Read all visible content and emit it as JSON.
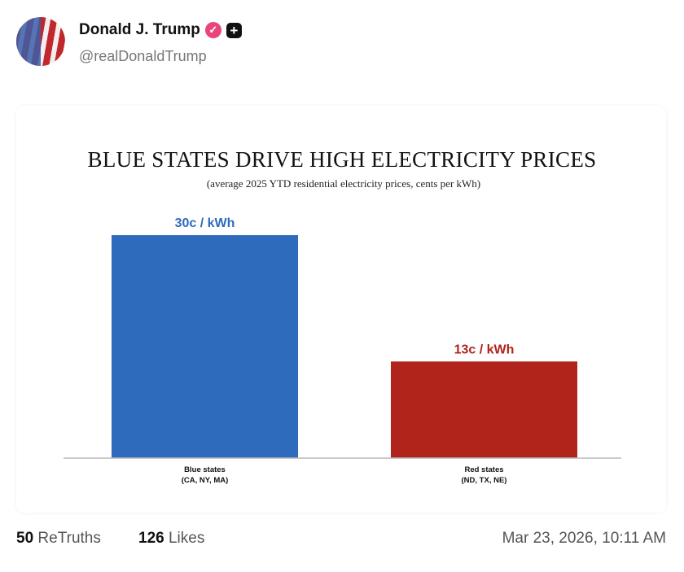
{
  "post": {
    "author_name": "Donald J. Trump",
    "handle": "@realDonaldTrump",
    "verified_icon": "verified-badge-icon",
    "plus_icon": "plus-icon",
    "retruths_count": "50",
    "retruths_label": "ReTruths",
    "likes_count": "126",
    "likes_label": "Likes",
    "timestamp": "Mar 23, 2026, 10:11 AM"
  },
  "chart_data": {
    "type": "bar",
    "title": "BLUE STATES DRIVE HIGH ELECTRICITY PRICES",
    "subtitle": "(average 2025 YTD residential electricity prices, cents per kWh)",
    "categories": [
      "Blue states",
      "Red states"
    ],
    "category_sublabels": [
      "(CA, NY, MA)",
      "(ND, TX, NE)"
    ],
    "values": [
      30,
      13
    ],
    "data_labels": [
      "30c  / kWh",
      "13c  / kWh"
    ],
    "colors": [
      "#2f6bbd",
      "#b0241c"
    ],
    "ylim": [
      0,
      30
    ],
    "grid": false
  }
}
